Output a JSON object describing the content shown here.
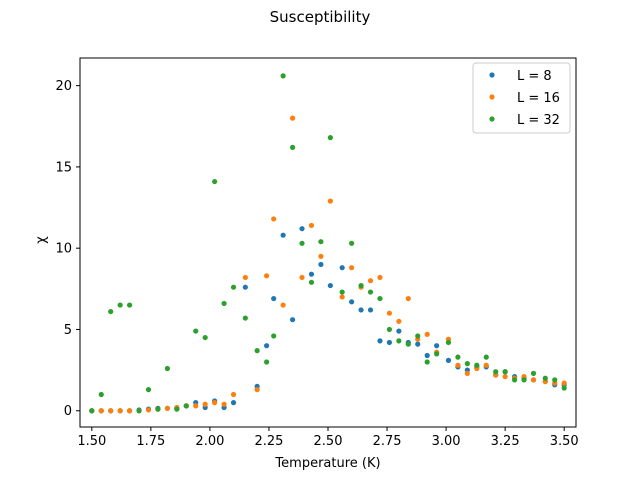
{
  "chart_data": {
    "type": "scatter",
    "title": "Susceptibility",
    "xlabel": "Temperature (K)",
    "ylabel": "χ",
    "xlim": [
      1.45,
      3.55
    ],
    "ylim": [
      -1.0,
      21.7
    ],
    "xticks": [
      1.5,
      1.75,
      2.0,
      2.25,
      2.5,
      2.75,
      3.0,
      3.25,
      3.5
    ],
    "xtick_labels": [
      "1.50",
      "1.75",
      "2.00",
      "2.25",
      "2.50",
      "2.75",
      "3.00",
      "3.25",
      "3.50"
    ],
    "yticks": [
      0,
      5,
      10,
      15,
      20
    ],
    "ytick_labels": [
      "0",
      "5",
      "10",
      "15",
      "20"
    ],
    "grid": false,
    "legend_position": "top-right",
    "series": [
      {
        "name": "L = 8",
        "color": "#1f77b4",
        "x": [
          1.5,
          1.54,
          1.58,
          1.62,
          1.66,
          1.7,
          1.74,
          1.78,
          1.82,
          1.86,
          1.9,
          1.94,
          1.98,
          2.02,
          2.06,
          2.1,
          2.15,
          2.2,
          2.24,
          2.27,
          2.31,
          2.35,
          2.39,
          2.43,
          2.47,
          2.51,
          2.56,
          2.6,
          2.64,
          2.68,
          2.72,
          2.76,
          2.8,
          2.84,
          2.88,
          2.92,
          2.96,
          3.01,
          3.05,
          3.09,
          3.13,
          3.17,
          3.21,
          3.25,
          3.29,
          3.33,
          3.37,
          3.42,
          3.46,
          3.5
        ],
        "y": [
          0.0,
          0.0,
          0.0,
          0.0,
          0.0,
          0.05,
          0.1,
          0.15,
          0.15,
          0.15,
          0.3,
          0.5,
          0.2,
          0.6,
          0.2,
          0.5,
          7.6,
          1.5,
          4.0,
          6.9,
          10.8,
          5.6,
          11.2,
          8.4,
          9.0,
          7.7,
          8.8,
          6.7,
          6.2,
          6.2,
          4.3,
          4.2,
          4.9,
          4.2,
          4.1,
          3.4,
          4.0,
          3.1,
          2.7,
          2.5,
          2.7,
          2.7,
          2.2,
          2.4,
          2.1,
          2.0,
          1.9,
          1.8,
          1.6,
          1.6
        ]
      },
      {
        "name": "L = 16",
        "color": "#ff7f0e",
        "x": [
          1.5,
          1.54,
          1.58,
          1.62,
          1.66,
          1.7,
          1.74,
          1.78,
          1.82,
          1.86,
          1.9,
          1.94,
          1.98,
          2.02,
          2.06,
          2.1,
          2.15,
          2.2,
          2.24,
          2.27,
          2.31,
          2.35,
          2.39,
          2.43,
          2.47,
          2.51,
          2.56,
          2.6,
          2.64,
          2.68,
          2.72,
          2.76,
          2.8,
          2.84,
          2.88,
          2.92,
          2.96,
          3.01,
          3.05,
          3.09,
          3.13,
          3.17,
          3.21,
          3.25,
          3.29,
          3.33,
          3.37,
          3.42,
          3.46,
          3.5
        ],
        "y": [
          0.0,
          0.0,
          0.0,
          0.0,
          0.0,
          0.0,
          0.05,
          0.1,
          0.15,
          0.2,
          0.3,
          0.3,
          0.4,
          0.5,
          0.4,
          1.0,
          8.2,
          1.3,
          8.3,
          11.8,
          6.5,
          18.0,
          8.2,
          11.4,
          9.5,
          12.9,
          7.0,
          8.8,
          7.6,
          8.0,
          8.2,
          6.0,
          5.5,
          6.9,
          4.4,
          4.7,
          3.6,
          4.4,
          2.8,
          2.3,
          2.6,
          2.8,
          2.2,
          2.1,
          2.0,
          2.1,
          1.9,
          1.8,
          1.7,
          1.7
        ]
      },
      {
        "name": "L = 32",
        "color": "#2ca02c",
        "x": [
          1.5,
          1.54,
          1.58,
          1.62,
          1.66,
          1.7,
          1.74,
          1.78,
          1.82,
          1.86,
          1.9,
          1.94,
          1.98,
          2.02,
          2.06,
          2.1,
          2.15,
          2.2,
          2.24,
          2.27,
          2.31,
          2.35,
          2.39,
          2.43,
          2.47,
          2.51,
          2.56,
          2.6,
          2.64,
          2.68,
          2.72,
          2.76,
          2.8,
          2.84,
          2.88,
          2.92,
          2.96,
          3.01,
          3.05,
          3.09,
          3.13,
          3.17,
          3.21,
          3.25,
          3.29,
          3.33,
          3.37,
          3.42,
          3.46,
          3.5
        ],
        "y": [
          0.0,
          1.0,
          6.1,
          6.5,
          6.5,
          0.0,
          1.3,
          0.1,
          2.6,
          0.1,
          0.3,
          4.9,
          4.5,
          14.1,
          6.6,
          7.6,
          5.7,
          3.7,
          3.0,
          4.6,
          20.6,
          16.2,
          10.3,
          7.9,
          10.4,
          16.8,
          7.3,
          10.3,
          7.7,
          7.3,
          6.9,
          5.0,
          4.3,
          4.1,
          4.6,
          3.0,
          3.5,
          4.2,
          3.3,
          2.9,
          2.8,
          3.3,
          2.4,
          2.4,
          1.9,
          1.9,
          2.3,
          2.0,
          1.9,
          1.4
        ]
      }
    ]
  }
}
